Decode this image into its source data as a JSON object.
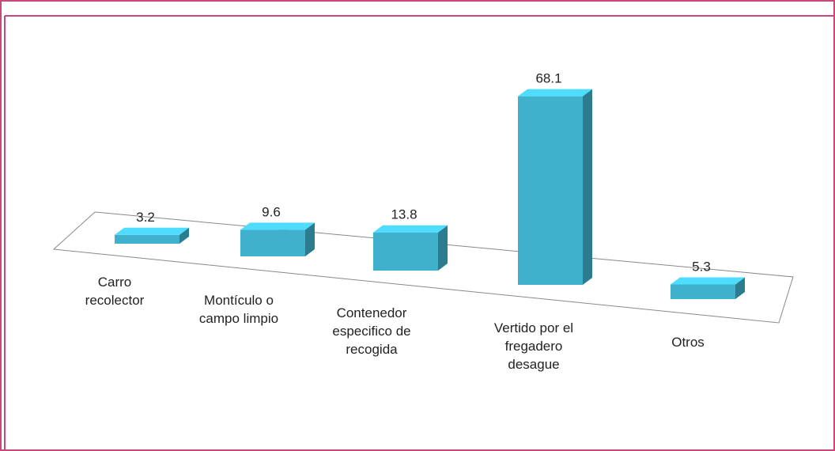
{
  "chart_data": {
    "type": "bar3d",
    "categories": [
      [
        "Carro",
        "recolector"
      ],
      [
        "Montículo o",
        "campo limpio"
      ],
      [
        "Contenedor",
        "especifico de",
        "recogida"
      ],
      [
        "Vertido por el",
        "fregadero",
        "desague"
      ],
      [
        "Otros"
      ]
    ],
    "values": [
      3.2,
      9.6,
      13.8,
      68.1,
      5.3
    ],
    "color": "#3fb1cd"
  }
}
